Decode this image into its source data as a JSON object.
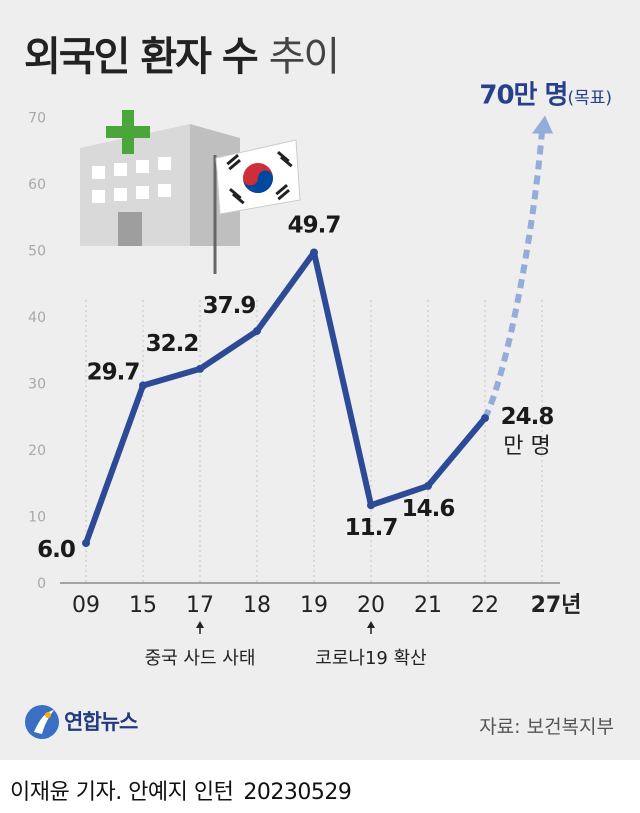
{
  "header": {
    "title_bold": "외국인 환자 수",
    "title_light": "추이"
  },
  "chart_data": {
    "type": "line",
    "title": "외국인 환자 수 추이",
    "categories": [
      "09",
      "15",
      "17",
      "18",
      "19",
      "20",
      "21",
      "22"
    ],
    "values": [
      6.0,
      29.7,
      32.2,
      37.9,
      49.7,
      11.7,
      14.6,
      24.8
    ],
    "value_labels": [
      "6.0",
      "29.7",
      "32.2",
      "37.9",
      "49.7",
      "11.7",
      "14.6",
      "24.8"
    ],
    "unit_label": "만 명",
    "y_ticks": [
      "0",
      "10",
      "20",
      "30",
      "40",
      "50",
      "60",
      "70"
    ],
    "ylim": [
      0,
      70
    ],
    "target": {
      "x_label": "27년",
      "value": 70,
      "value_text": "70만 명",
      "note": "(목표)"
    },
    "annotations": [
      {
        "category": "17",
        "text": "중국 사드 사태"
      },
      {
        "category": "20",
        "text": "코로나19 확산"
      }
    ],
    "grid": "vertical dotted at each year",
    "colors": {
      "line": "#2d4a96",
      "target_arrow": "#94acd9",
      "label_text": "#1a1a1a"
    }
  },
  "footer": {
    "logo_text": "연합뉴스",
    "source": "자료: 보건복지부",
    "credit_name": "이재윤 기자. 안예지 인턴",
    "credit_date": "20230529"
  }
}
